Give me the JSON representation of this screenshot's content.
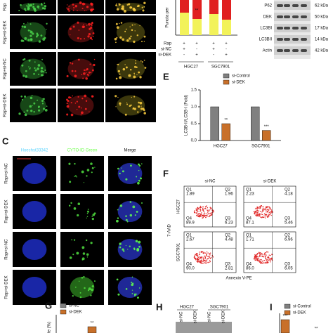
{
  "panel_a": {
    "row_labels": [
      "Rap",
      "Rap+si-DEK",
      "Rap+si-NC",
      "Rap+si-DEK"
    ]
  },
  "panel_b": {
    "y_label": "Puncta per",
    "significance": "**",
    "conditions": [
      {
        "label": "Rap",
        "marks": [
          "+",
          "+",
          "+",
          "+"
        ]
      },
      {
        "label": "si-NC",
        "marks": [
          "+",
          "-",
          "+",
          "-"
        ]
      },
      {
        "label": "si-DEK",
        "marks": [
          "-",
          "+",
          "-",
          "+"
        ]
      }
    ],
    "groups": [
      "HGC27",
      "SGC7901"
    ]
  },
  "panel_d": {
    "bands": [
      {
        "name": "P62",
        "size": "62 kDa"
      },
      {
        "name": "DEK",
        "size": "50 kDa"
      },
      {
        "name": "LC3BI",
        "size": "17 kDa"
      },
      {
        "name": "LC3BII",
        "size": "14 kDa"
      },
      {
        "name": "Actin",
        "size": "42 kDa"
      }
    ]
  },
  "panel_e": {
    "letter": "E",
    "type": "bar",
    "y_label": "LC3B-II/LC3B-I (Fold)",
    "categories": [
      "HGC27",
      "SGC7901"
    ],
    "series": [
      {
        "name": "si-Control",
        "color": "#808080",
        "values": [
          1.0,
          1.0
        ]
      },
      {
        "name": "si-DEK",
        "color": "#c8702a",
        "values": [
          0.5,
          0.3
        ]
      }
    ],
    "significance": [
      "**",
      "***"
    ],
    "ylim": [
      0,
      1.5
    ],
    "yticks": [
      {
        "value": 0,
        "label": "0.0"
      },
      0.5,
      {
        "value": 1,
        "label": "1.0"
      },
      1.5
    ]
  },
  "panel_c": {
    "letter": "C",
    "headers": [
      "Hoechst33342",
      "CYTO-ID Green",
      "Merge"
    ],
    "row_labels": [
      "Rap+si-NC",
      "Rap+si-DEK",
      "Rap+si-NC",
      "Rap+si-DEK"
    ]
  },
  "panel_f": {
    "letter": "F",
    "headers": [
      "si-NC",
      "si-DEK"
    ],
    "row_labels": [
      "HGC27",
      "SGC7901"
    ],
    "y_axis": "7-AAD",
    "x_axis": "Annexin V-PE",
    "plots": [
      [
        {
          "Q1": "1.89",
          "Q2": "1.96",
          "Q4": "89.9",
          "Q3": "6.23"
        },
        {
          "Q1": "2.23",
          "Q2": "4.18",
          "Q4": "87.1",
          "Q3": "5.46"
        }
      ],
      [
        {
          "Q1": "2.67",
          "Q2": "4.48",
          "Q4": "90.0",
          "Q3": "2.81"
        },
        {
          "Q1": "1.71",
          "Q2": "6.96",
          "Q4": "86.0",
          "Q3": "6.05"
        }
      ]
    ]
  },
  "panel_g": {
    "letter": "G",
    "legend": [
      "si-NC",
      "si-DEK"
    ],
    "significance": "**",
    "y_label": "te (%)"
  },
  "panel_h": {
    "letter": "H",
    "groups": [
      "HGC27",
      "SGC7901"
    ],
    "lanes": [
      "si-NC",
      "si-DEK",
      "si-NC",
      "si-DEK"
    ]
  },
  "panel_i": {
    "letter": "I",
    "legend": [
      "si-Control",
      "si-DEK"
    ],
    "significance": [
      "***",
      "**"
    ]
  }
}
